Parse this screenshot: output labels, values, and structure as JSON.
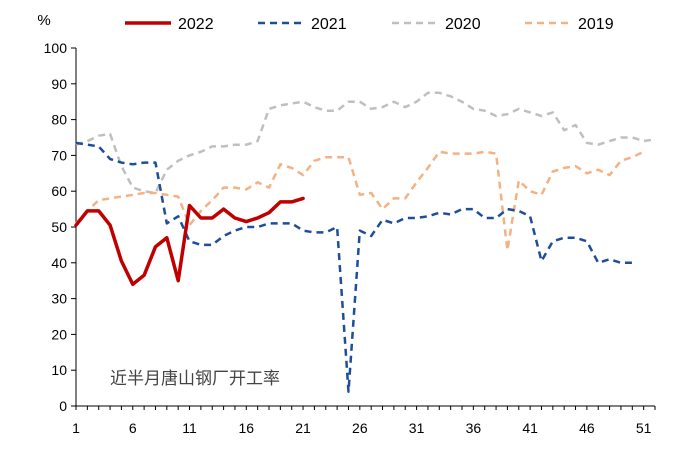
{
  "chart_data": {
    "type": "line",
    "title": "",
    "annotation": "近半月唐山钢厂开工率",
    "ylabel": "%",
    "xlabel": "",
    "xlim": [
      1,
      52
    ],
    "ylim": [
      0,
      100
    ],
    "x_ticks": [
      1,
      6,
      11,
      16,
      21,
      26,
      31,
      36,
      41,
      46,
      51
    ],
    "y_ticks": [
      0,
      10,
      20,
      30,
      40,
      50,
      60,
      70,
      80,
      90,
      100
    ],
    "grid": false,
    "legend_position": "top",
    "series": [
      {
        "name": "2022",
        "color": "#c00000",
        "style": "solid",
        "x": [
          1,
          2,
          3,
          4,
          5,
          6,
          7,
          8,
          9,
          10,
          11,
          12,
          13,
          14,
          15,
          16,
          17,
          18,
          19,
          20,
          21
        ],
        "values": [
          50.5,
          54.5,
          54.5,
          50.5,
          40.5,
          34,
          36.5,
          44.5,
          47,
          35,
          56,
          52.5,
          52.5,
          55,
          52.5,
          51.5,
          52.5,
          54,
          57,
          57,
          58
        ]
      },
      {
        "name": "2021",
        "color": "#1f4e99",
        "style": "dashed",
        "x": [
          1,
          2,
          3,
          4,
          5,
          6,
          7,
          8,
          9,
          10,
          11,
          12,
          13,
          14,
          15,
          16,
          17,
          18,
          19,
          20,
          21,
          22,
          23,
          24,
          25,
          26,
          27,
          28,
          29,
          30,
          31,
          32,
          33,
          34,
          35,
          36,
          37,
          38,
          39,
          40,
          41,
          42,
          43,
          44,
          45,
          46,
          47,
          48,
          49,
          50,
          51
        ],
        "values": [
          73.5,
          73,
          72.5,
          69,
          68,
          67.5,
          68,
          68,
          51,
          53,
          46,
          45,
          45,
          47.5,
          49,
          50,
          50,
          51,
          51,
          51,
          49,
          48.5,
          48.5,
          50,
          4,
          49,
          47.5,
          52,
          51,
          52.5,
          52.5,
          53,
          54,
          53.5,
          55,
          55,
          52.5,
          52.5,
          55,
          54.5,
          53,
          40.5,
          46,
          47,
          47,
          46,
          40,
          41,
          40,
          40,
          null
        ]
      },
      {
        "name": "2020",
        "color": "#bfbfbf",
        "style": "dashed",
        "x": [
          1,
          2,
          3,
          4,
          5,
          6,
          7,
          8,
          9,
          10,
          11,
          12,
          13,
          14,
          15,
          16,
          17,
          18,
          19,
          20,
          21,
          22,
          23,
          24,
          25,
          26,
          27,
          28,
          29,
          30,
          31,
          32,
          33,
          34,
          35,
          36,
          37,
          38,
          39,
          40,
          41,
          42,
          43,
          44,
          45,
          46,
          47,
          48,
          49,
          50,
          51,
          52
        ],
        "values": [
          73,
          74,
          75.5,
          76,
          67,
          61,
          60,
          59.5,
          66,
          68.5,
          70,
          71,
          72.5,
          72.5,
          73,
          73,
          74,
          83,
          84,
          84.5,
          85,
          83.5,
          82.5,
          82.5,
          85,
          85,
          83,
          83.5,
          85,
          83.5,
          85,
          87.5,
          87.5,
          86.5,
          85,
          83,
          82.5,
          81,
          81.5,
          83,
          82,
          81,
          82,
          77,
          78.5,
          73.5,
          73,
          74,
          75,
          75,
          74,
          74.5
        ]
      },
      {
        "name": "2019",
        "color": "#f4b183",
        "style": "dashed",
        "x": [
          1,
          2,
          3,
          4,
          5,
          6,
          7,
          8,
          9,
          10,
          11,
          12,
          13,
          14,
          15,
          16,
          17,
          18,
          19,
          20,
          21,
          22,
          23,
          24,
          25,
          26,
          27,
          28,
          29,
          30,
          31,
          32,
          33,
          34,
          35,
          36,
          37,
          38,
          39,
          40,
          41,
          42,
          43,
          44,
          45,
          46,
          47,
          48,
          49,
          50,
          51
        ],
        "values": [
          51,
          54.5,
          57.5,
          58,
          58.5,
          59,
          59.5,
          59.5,
          59,
          58.5,
          50.5,
          54.5,
          57.5,
          61,
          61,
          60.5,
          62.5,
          61,
          67.5,
          66.5,
          64.5,
          68.5,
          69.5,
          69.5,
          69.5,
          59,
          59.5,
          55,
          58,
          58,
          62.5,
          66.5,
          71,
          70.5,
          70.5,
          70.5,
          71,
          70.5,
          43.5,
          63,
          60,
          59,
          65.5,
          66.5,
          67,
          65,
          66,
          64.5,
          68.5,
          69.5,
          71
        ]
      }
    ]
  }
}
